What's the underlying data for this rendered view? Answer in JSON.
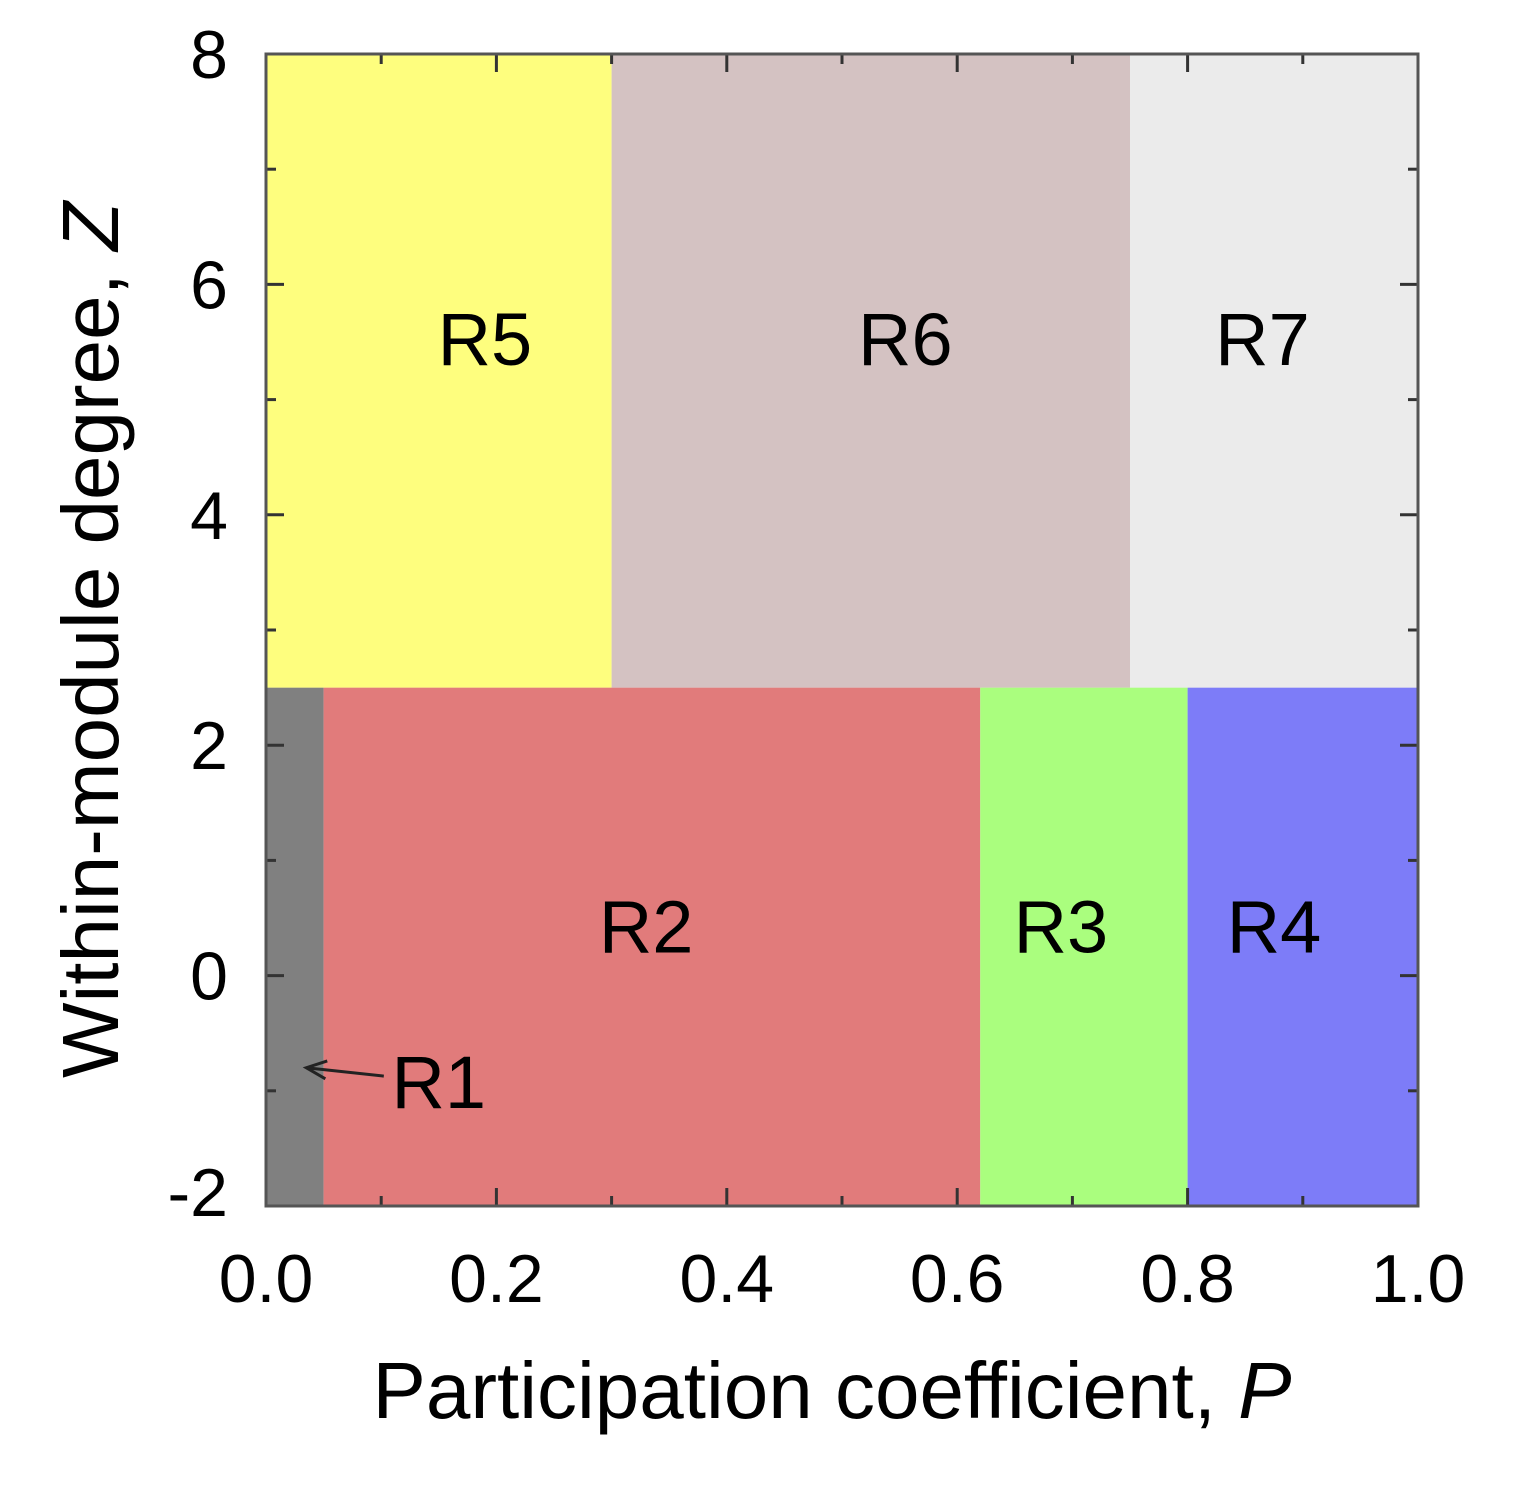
{
  "chart_data": {
    "type": "area",
    "xlabel": "Participation coefficient, ",
    "xlabel_var": "P",
    "ylabel": "Within-module degree, ",
    "ylabel_var": "Z",
    "xlim": [
      0,
      1
    ],
    "ylim": [
      -2,
      8
    ],
    "x_ticks": [
      0.0,
      0.2,
      0.4,
      0.6,
      0.8,
      1.0
    ],
    "x_tick_labels": [
      "0.0",
      "0.2",
      "0.4",
      "0.6",
      "0.8",
      "1.0"
    ],
    "x_minor_ticks": [
      0.1,
      0.3,
      0.5,
      0.7,
      0.9
    ],
    "y_ticks": [
      -2,
      0,
      2,
      4,
      6,
      8
    ],
    "y_tick_labels": [
      "-2",
      "0",
      "2",
      "4",
      "6",
      "8"
    ],
    "y_minor_ticks": [
      -1,
      1,
      3,
      5,
      7
    ],
    "grid": false,
    "regions": [
      {
        "name": "R1",
        "x": [
          0.0,
          0.05
        ],
        "y": [
          -2,
          2.5
        ],
        "color": "#808080",
        "label_at": [
          0.15,
          -1.15
        ],
        "arrow_to": [
          0.035,
          -0.8
        ]
      },
      {
        "name": "R2",
        "x": [
          0.05,
          0.62
        ],
        "y": [
          -2,
          2.5
        ],
        "color": "#e17b7b",
        "label_at": [
          0.33,
          0.2
        ]
      },
      {
        "name": "R3",
        "x": [
          0.62,
          0.8
        ],
        "y": [
          -2,
          2.5
        ],
        "color": "#aafe7e",
        "label_at": [
          0.69,
          0.2
        ]
      },
      {
        "name": "R4",
        "x": [
          0.8,
          1.0
        ],
        "y": [
          -2,
          2.5
        ],
        "color": "#7d7cf8",
        "label_at": [
          0.875,
          0.2
        ]
      },
      {
        "name": "R5",
        "x": [
          0.0,
          0.3
        ],
        "y": [
          2.5,
          8
        ],
        "color": "#fefe7e",
        "label_at": [
          0.19,
          5.3
        ]
      },
      {
        "name": "R6",
        "x": [
          0.3,
          0.75
        ],
        "y": [
          2.5,
          8
        ],
        "color": "#d4c2c2",
        "label_at": [
          0.555,
          5.3
        ]
      },
      {
        "name": "R7",
        "x": [
          0.75,
          1.0
        ],
        "y": [
          2.5,
          8
        ],
        "color": "#ebebeb",
        "label_at": [
          0.865,
          5.3
        ]
      }
    ]
  }
}
